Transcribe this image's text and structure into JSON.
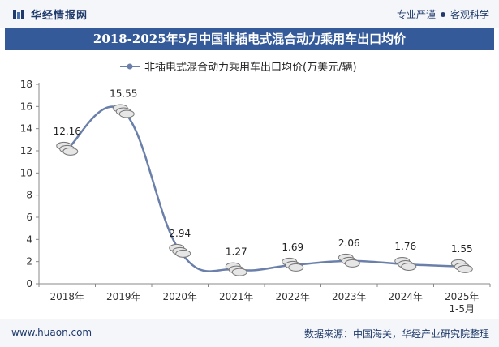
{
  "header": {
    "brand_name": "华经情报网",
    "slogan_left": "专业严谨",
    "slogan_right": "客观科学"
  },
  "footer": {
    "url": "www.huaon.com",
    "source": "数据来源：中国海关，华经产业研究院整理"
  },
  "colors": {
    "title_bg": "#345a9a",
    "line": "#6a7faa",
    "brand": "#1f3a6b"
  },
  "chart_data": {
    "type": "line",
    "title": "2018-2025年5月中国非插电式混合动力乘用车出口均价",
    "categories": [
      "2018年",
      "2019年",
      "2020年",
      "2021年",
      "2022年",
      "2023年",
      "2024年",
      "2025年\n1-5月"
    ],
    "series": [
      {
        "name": "非插电式混合动力乘用车出口均价(万美元/辆)",
        "values": [
          12.16,
          15.55,
          2.94,
          1.27,
          1.69,
          2.06,
          1.76,
          1.55
        ]
      }
    ],
    "data_labels": [
      "12.16",
      "15.55",
      "2.94",
      "1.27",
      "1.69",
      "2.06",
      "1.76",
      "1.55"
    ],
    "ylim": [
      0,
      18
    ],
    "yticks": [
      0,
      2,
      4,
      6,
      8,
      10,
      12,
      14,
      16,
      18
    ],
    "xlabel": "",
    "ylabel": ""
  }
}
